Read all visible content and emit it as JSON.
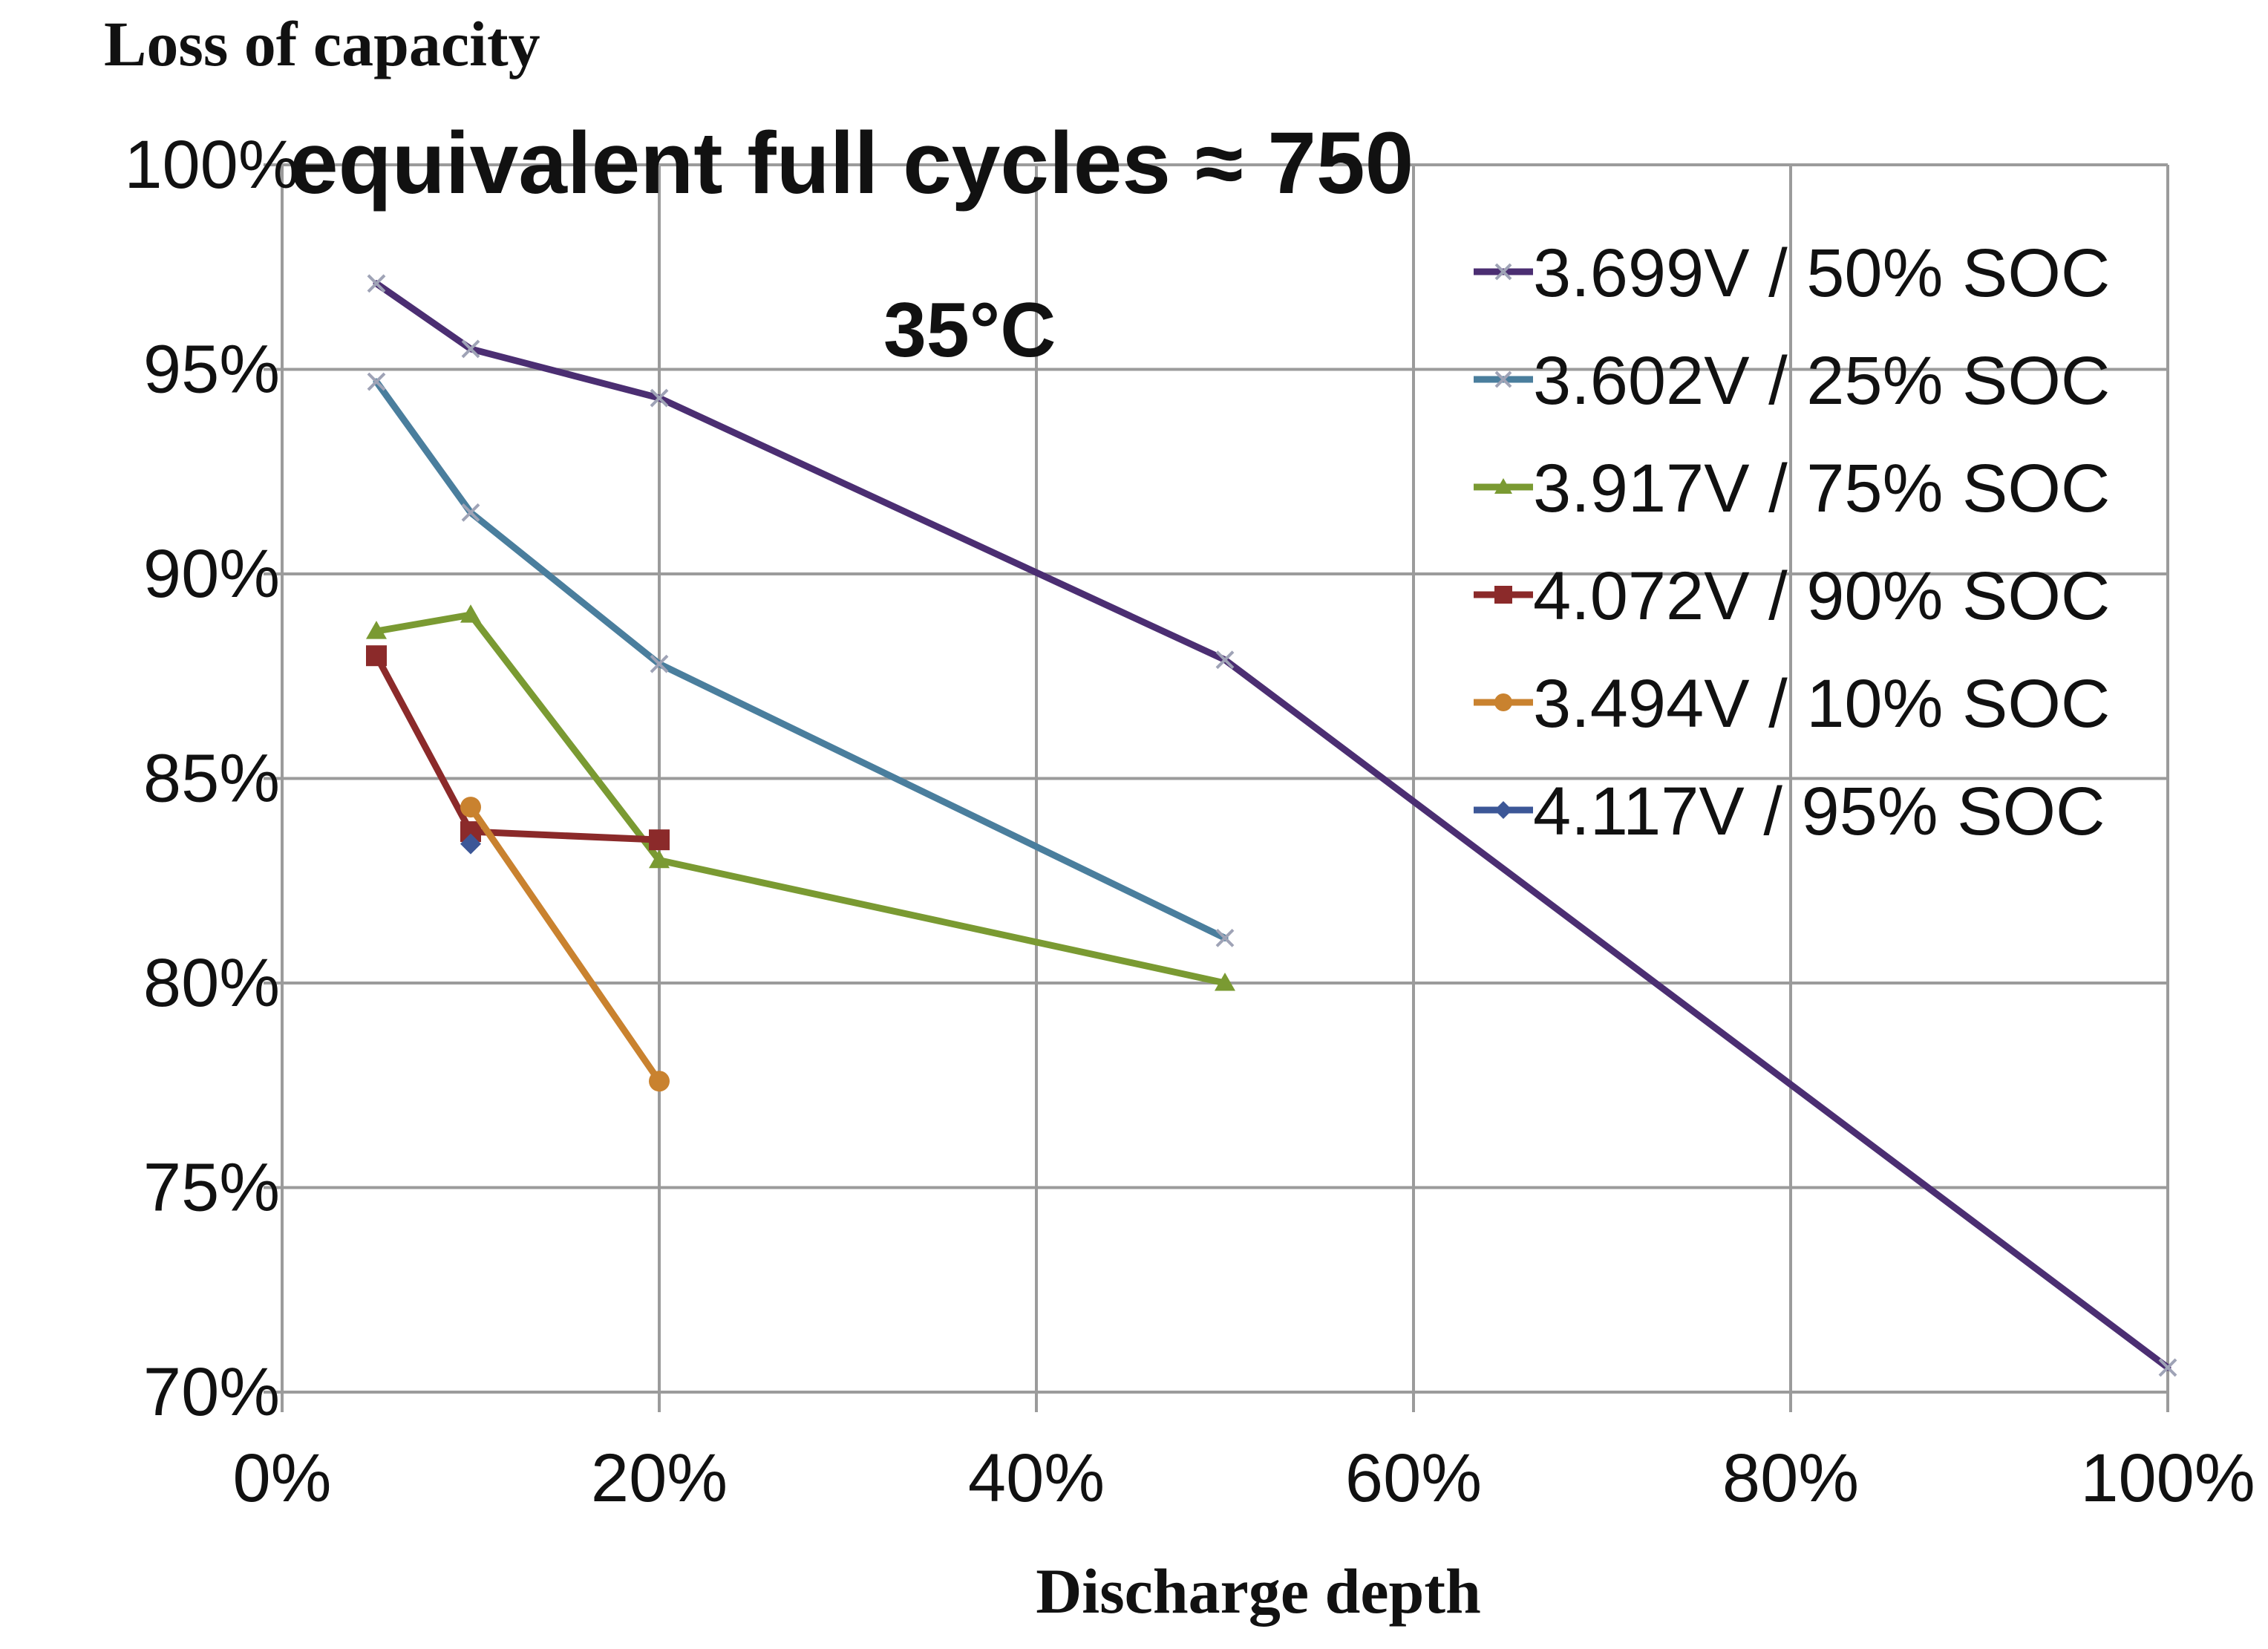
{
  "chart_data": {
    "type": "line",
    "y_axis_title": "Loss of capacity",
    "xlabel": "Discharge depth",
    "annotations": {
      "cycles": "equivalent full cycles ≈ 750",
      "temperature": "35°C"
    },
    "xlim": [
      0,
      100
    ],
    "ylim": [
      70,
      100
    ],
    "x_ticks": [
      0,
      20,
      40,
      60,
      80,
      100
    ],
    "y_ticks": [
      70,
      75,
      80,
      85,
      90,
      95,
      100
    ],
    "x_tick_labels": [
      "0%",
      "20%",
      "40%",
      "60%",
      "80%",
      "100%"
    ],
    "y_tick_labels": [
      "70%",
      "75%",
      "80%",
      "85%",
      "90%",
      "95%",
      "100%"
    ],
    "grid": true,
    "legend_position": "top-right",
    "series": [
      {
        "name": "3.699V / 50% SOC",
        "color": "#4b2e72",
        "marker": "x",
        "points": [
          {
            "x": 5,
            "y": 97.1
          },
          {
            "x": 10,
            "y": 95.5
          },
          {
            "x": 20,
            "y": 94.3
          },
          {
            "x": 50,
            "y": 87.9
          },
          {
            "x": 100,
            "y": 70.6
          }
        ]
      },
      {
        "name": "3.602V / 25% SOC",
        "color": "#4a7e9d",
        "marker": "x",
        "points": [
          {
            "x": 5,
            "y": 94.7
          },
          {
            "x": 10,
            "y": 91.5
          },
          {
            "x": 20,
            "y": 87.8
          },
          {
            "x": 50,
            "y": 81.1
          }
        ]
      },
      {
        "name": "3.917V / 75% SOC",
        "color": "#7a9a32",
        "marker": "triangle",
        "points": [
          {
            "x": 5,
            "y": 88.6
          },
          {
            "x": 10,
            "y": 89.0
          },
          {
            "x": 20,
            "y": 83.0
          },
          {
            "x": 50,
            "y": 80.0
          }
        ]
      },
      {
        "name": "4.072V / 90% SOC",
        "color": "#8b2a2a",
        "marker": "square",
        "points": [
          {
            "x": 5,
            "y": 88.0
          },
          {
            "x": 10,
            "y": 83.7
          },
          {
            "x": 20,
            "y": 83.5
          }
        ]
      },
      {
        "name": "3.494V / 10% SOC",
        "color": "#c9822f",
        "marker": "circle",
        "points": [
          {
            "x": 10,
            "y": 84.3
          },
          {
            "x": 20,
            "y": 77.6
          }
        ]
      },
      {
        "name": "4.117V / 95% SOC",
        "color": "#3c5797",
        "marker": "diamond",
        "points": [
          {
            "x": 10,
            "y": 83.4
          }
        ]
      }
    ]
  }
}
